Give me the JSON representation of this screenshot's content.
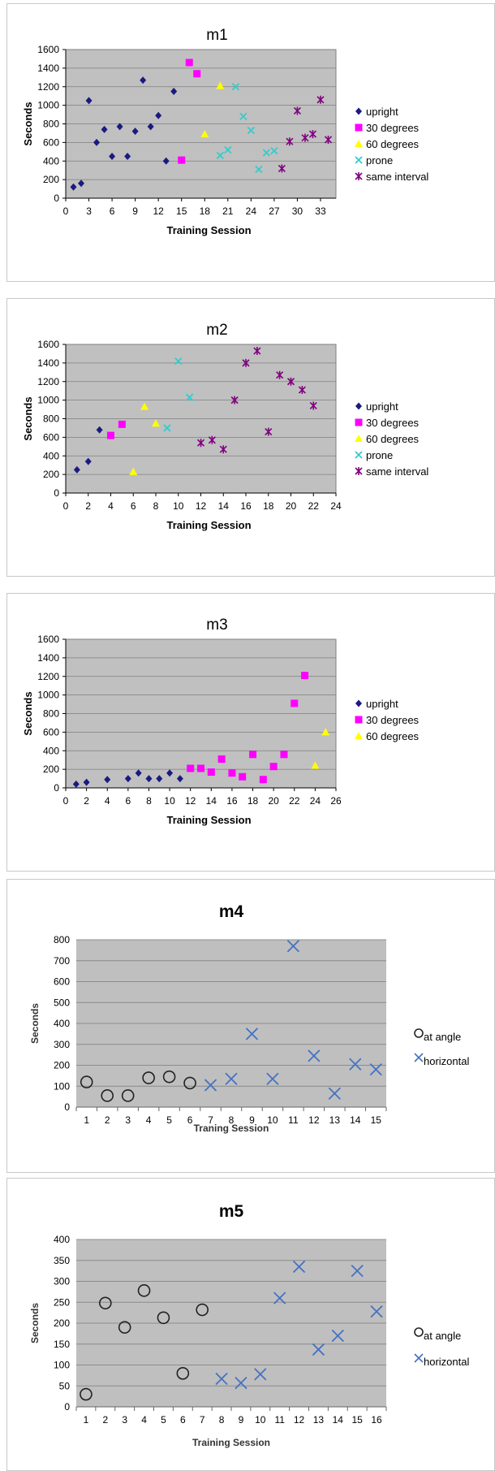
{
  "chart_data": [
    {
      "type": "scatter",
      "title": "m1",
      "xlabel": "Training Session",
      "ylabel": "Seconds",
      "xlim": [
        0,
        35
      ],
      "ylim": [
        0,
        1600
      ],
      "xticks": [
        0,
        3,
        6,
        9,
        12,
        15,
        18,
        21,
        24,
        27,
        30,
        33
      ],
      "yticks": [
        0,
        200,
        400,
        600,
        800,
        1000,
        1200,
        1400,
        1600
      ],
      "grid": true,
      "legend": "right",
      "series": [
        {
          "name": "upright",
          "marker": "diamond",
          "color": "#1a1a80",
          "points": [
            [
              1,
              120
            ],
            [
              2,
              160
            ],
            [
              3,
              1050
            ],
            [
              4,
              600
            ],
            [
              5,
              740
            ],
            [
              6,
              450
            ],
            [
              7,
              770
            ],
            [
              8,
              450
            ],
            [
              9,
              720
            ],
            [
              10,
              1270
            ],
            [
              11,
              770
            ],
            [
              12,
              890
            ],
            [
              13,
              400
            ],
            [
              14,
              1150
            ]
          ]
        },
        {
          "name": "30 degrees",
          "marker": "square",
          "color": "#ff00ff",
          "points": [
            [
              15,
              410
            ],
            [
              16,
              1460
            ],
            [
              17,
              1340
            ]
          ]
        },
        {
          "name": "60 degrees",
          "marker": "triangle",
          "color": "#ffff00",
          "points": [
            [
              18,
              690
            ],
            [
              20,
              1210
            ]
          ]
        },
        {
          "name": "prone",
          "marker": "x",
          "color": "#33cccc",
          "points": [
            [
              20,
              460
            ],
            [
              21,
              520
            ],
            [
              22,
              1200
            ],
            [
              23,
              880
            ],
            [
              24,
              730
            ],
            [
              25,
              310
            ],
            [
              26,
              490
            ],
            [
              27,
              510
            ]
          ]
        },
        {
          "name": "same interval",
          "marker": "star",
          "color": "#800080",
          "points": [
            [
              28,
              320
            ],
            [
              29,
              610
            ],
            [
              30,
              940
            ],
            [
              31,
              650
            ],
            [
              32,
              690
            ],
            [
              33,
              1060
            ],
            [
              34,
              630
            ]
          ]
        }
      ]
    },
    {
      "type": "scatter",
      "title": "m2",
      "xlabel": "Training Session",
      "ylabel": "Seconds",
      "xlim": [
        0,
        24
      ],
      "ylim": [
        0,
        1600
      ],
      "xticks": [
        0,
        2,
        4,
        6,
        8,
        10,
        12,
        14,
        16,
        18,
        20,
        22,
        24
      ],
      "yticks": [
        0,
        200,
        400,
        600,
        800,
        1000,
        1200,
        1400,
        1600
      ],
      "grid": true,
      "legend": "right",
      "series": [
        {
          "name": "upright",
          "marker": "diamond",
          "color": "#1a1a80",
          "points": [
            [
              1,
              250
            ],
            [
              2,
              340
            ],
            [
              3,
              680
            ]
          ]
        },
        {
          "name": "30 degrees",
          "marker": "square",
          "color": "#ff00ff",
          "points": [
            [
              4,
              620
            ],
            [
              5,
              740
            ]
          ]
        },
        {
          "name": "60 degrees",
          "marker": "triangle",
          "color": "#ffff00",
          "points": [
            [
              6,
              230
            ],
            [
              7,
              930
            ],
            [
              8,
              750
            ]
          ]
        },
        {
          "name": "prone",
          "marker": "x",
          "color": "#33cccc",
          "points": [
            [
              9,
              700
            ],
            [
              10,
              1420
            ],
            [
              11,
              1030
            ]
          ]
        },
        {
          "name": "same interval",
          "marker": "star",
          "color": "#800080",
          "points": [
            [
              12,
              540
            ],
            [
              13,
              570
            ],
            [
              14,
              470
            ],
            [
              15,
              1000
            ],
            [
              16,
              1400
            ],
            [
              17,
              1530
            ],
            [
              18,
              660
            ],
            [
              19,
              1270
            ],
            [
              20,
              1200
            ],
            [
              21,
              1110
            ],
            [
              22,
              940
            ]
          ]
        }
      ]
    },
    {
      "type": "scatter",
      "title": "m3",
      "xlabel": "Training Session",
      "ylabel": "Seconds",
      "xlim": [
        0,
        26
      ],
      "ylim": [
        0,
        1600
      ],
      "xticks": [
        0,
        2,
        4,
        6,
        8,
        10,
        12,
        14,
        16,
        18,
        20,
        22,
        24,
        26
      ],
      "yticks": [
        0,
        200,
        400,
        600,
        800,
        1000,
        1200,
        1400,
        1600
      ],
      "grid": true,
      "legend": "right",
      "series": [
        {
          "name": "upright",
          "marker": "diamond",
          "color": "#1a1a80",
          "points": [
            [
              1,
              40
            ],
            [
              2,
              60
            ],
            [
              4,
              90
            ],
            [
              6,
              100
            ],
            [
              7,
              160
            ],
            [
              8,
              100
            ],
            [
              9,
              100
            ],
            [
              10,
              160
            ],
            [
              11,
              100
            ]
          ]
        },
        {
          "name": "30 degrees",
          "marker": "square",
          "color": "#ff00ff",
          "points": [
            [
              12,
              210
            ],
            [
              13,
              210
            ],
            [
              14,
              170
            ],
            [
              15,
              310
            ],
            [
              16,
              160
            ],
            [
              17,
              120
            ],
            [
              18,
              360
            ],
            [
              19,
              90
            ],
            [
              20,
              230
            ],
            [
              21,
              360
            ],
            [
              22,
              910
            ],
            [
              23,
              1210
            ]
          ]
        },
        {
          "name": "60 degrees",
          "marker": "triangle",
          "color": "#ffff00",
          "points": [
            [
              24,
              240
            ],
            [
              25,
              600
            ]
          ]
        }
      ]
    },
    {
      "type": "scatter",
      "title": "m4",
      "xlabel": "Traning Session",
      "ylabel": "Seconds",
      "categories": [
        "1",
        "2",
        "3",
        "4",
        "5",
        "6",
        "7",
        "8",
        "9",
        "10",
        "11",
        "12",
        "13",
        "14",
        "15"
      ],
      "ylim": [
        0,
        800
      ],
      "yticks": [
        0,
        100,
        200,
        300,
        400,
        500,
        600,
        700,
        800
      ],
      "grid": true,
      "legend": "right",
      "series": [
        {
          "name": "at angle",
          "marker": "circle",
          "color": "#222222",
          "points": [
            [
              1,
              120
            ],
            [
              2,
              55
            ],
            [
              3,
              55
            ],
            [
              4,
              140
            ],
            [
              5,
              145
            ],
            [
              6,
              115
            ]
          ]
        },
        {
          "name": "horizontal",
          "marker": "x",
          "color": "#4472c4",
          "points": [
            [
              7,
              105
            ],
            [
              8,
              135
            ],
            [
              9,
              350
            ],
            [
              10,
              135
            ],
            [
              11,
              770
            ],
            [
              12,
              245
            ],
            [
              13,
              65
            ],
            [
              14,
              205
            ],
            [
              15,
              180
            ]
          ]
        }
      ]
    },
    {
      "type": "scatter",
      "title": "m5",
      "xlabel": "Training Session",
      "ylabel": "Seconds",
      "categories": [
        "1",
        "2",
        "3",
        "4",
        "5",
        "6",
        "7",
        "8",
        "9",
        "10",
        "11",
        "12",
        "13",
        "14",
        "15",
        "16"
      ],
      "ylim": [
        0,
        400
      ],
      "yticks": [
        0,
        50,
        100,
        150,
        200,
        250,
        300,
        350,
        400
      ],
      "grid": true,
      "legend": "right",
      "series": [
        {
          "name": "at angle",
          "marker": "circle",
          "color": "#222222",
          "points": [
            [
              1,
              30
            ],
            [
              2,
              248
            ],
            [
              3,
              190
            ],
            [
              4,
              278
            ],
            [
              5,
              213
            ],
            [
              6,
              80
            ],
            [
              7,
              232
            ]
          ]
        },
        {
          "name": "horizontal",
          "marker": "x",
          "color": "#4472c4",
          "points": [
            [
              8,
              67
            ],
            [
              9,
              57
            ],
            [
              10,
              78
            ],
            [
              11,
              260
            ],
            [
              12,
              335
            ],
            [
              13,
              137
            ],
            [
              14,
              170
            ],
            [
              15,
              325
            ],
            [
              16,
              228
            ]
          ]
        }
      ]
    }
  ]
}
